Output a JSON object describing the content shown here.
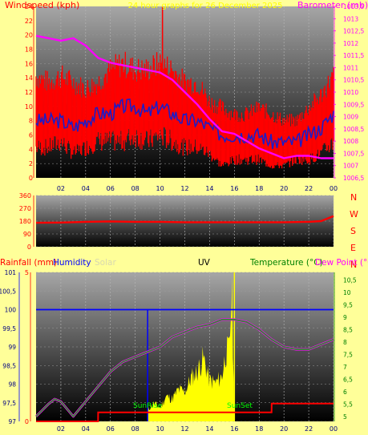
{
  "colors": {
    "page_bg": "#ffff99",
    "wind_speed": "#ff0000",
    "wind_gust": "#ff0000",
    "wind_avg": "#1c1cc8",
    "barometer": "#ff00ff",
    "direction": "#ff0000",
    "humidity": "#0000ff",
    "temperature": "#2e8b2e",
    "dew_point": "#ff00ff",
    "rainfall": "#ff0000",
    "solar": "#ffff00",
    "labels_red": "#ff0000",
    "labels_magenta": "#ff00ff"
  },
  "top": {
    "left_title": "Windspeed (kph)",
    "center_title": "24 hour graphs for 26 December 2025",
    "right_title": "Barometer (mb)",
    "left_ticks": [
      "0",
      "2",
      "4",
      "6",
      "8",
      "10",
      "12",
      "14",
      "16",
      "18",
      "20",
      "22",
      "24"
    ],
    "right_ticks": [
      "1006,5",
      "1007",
      "1007,5",
      "1008",
      "1008,5",
      "1009",
      "1009,5",
      "1010",
      "1010,5",
      "1011",
      "1011,5",
      "1012",
      "1012,5",
      "1013",
      "1013,5"
    ]
  },
  "middle": {
    "left_ticks": [
      "0",
      "90",
      "180",
      "270",
      "360"
    ],
    "compass": [
      "N",
      "W",
      "S",
      "E",
      "N"
    ]
  },
  "bottom": {
    "rain_label": "Rainfall (mm)",
    "humidity_label": "Humidity",
    "solar_label": "Solar",
    "uv_label": "UV",
    "temp_label": "Temperature (°C)",
    "dew_label": "Dew Point (°C",
    "left_ticks": [
      "97",
      "97,5",
      "98",
      "98,5",
      "99",
      "99,5",
      "100",
      "100,5",
      "101"
    ],
    "right_ticks": [
      "5",
      "5,5",
      "6",
      "6,5",
      "7",
      "7,5",
      "8",
      "8,5",
      "9",
      "9,5",
      "10",
      "10,5"
    ],
    "rain_axis_ticks": [
      "0",
      "5"
    ],
    "sunrise": "SunRise",
    "sunset": "SunSet"
  },
  "x_ticks": [
    "02",
    "04",
    "06",
    "08",
    "10",
    "12",
    "14",
    "16",
    "18",
    "20",
    "22",
    "00"
  ],
  "chart_data": [
    {
      "type": "line",
      "title": "24 hour graphs for 26 December 2025",
      "ylabel": "Windspeed (kph)",
      "y2label": "Barometer (mb)",
      "ylim": [
        0,
        24
      ],
      "y2lim": [
        1006.5,
        1013.5
      ],
      "x_hours": [
        0,
        1,
        2,
        3,
        4,
        5,
        6,
        7,
        8,
        9,
        10,
        11,
        12,
        13,
        14,
        15,
        16,
        17,
        18,
        19,
        20,
        21,
        22,
        23,
        24
      ],
      "series": [
        {
          "name": "Barometer (mb)",
          "axis": "right",
          "values": [
            1012.3,
            1012.2,
            1012.1,
            1012.2,
            1011.9,
            1011.4,
            1011.2,
            1011.1,
            1011.0,
            1010.9,
            1010.8,
            1010.5,
            1010.0,
            1009.5,
            1008.9,
            1008.4,
            1008.3,
            1008.0,
            1007.7,
            1007.5,
            1007.3,
            1007.4,
            1007.4,
            1007.3,
            1007.3
          ]
        }
      ],
      "wind_envelope": {
        "gust_max": [
          16,
          15,
          16,
          15,
          14,
          15,
          17,
          18,
          17,
          17,
          18,
          17,
          15,
          15,
          12,
          11,
          10,
          10,
          11,
          10,
          9,
          9,
          11,
          13,
          16
        ],
        "speed_min": [
          5,
          5,
          6,
          4,
          5,
          6,
          6,
          6,
          7,
          6,
          7,
          6,
          5,
          5,
          4,
          2,
          3,
          3,
          3,
          2,
          2,
          3,
          3,
          4,
          6
        ],
        "peak_gust": 24
      },
      "wind_avg": [
        8,
        8,
        8,
        7,
        8,
        9,
        9,
        10,
        10,
        9,
        10,
        9,
        8,
        8,
        7,
        6,
        6,
        6,
        6,
        5,
        5,
        5,
        6,
        7,
        9
      ]
    },
    {
      "type": "line",
      "ylim": [
        0,
        360
      ],
      "x_hours": [
        0,
        2,
        4,
        6,
        8,
        10,
        12,
        14,
        16,
        18,
        20,
        22,
        23,
        24
      ],
      "series": [
        {
          "name": "direction",
          "values": [
            168,
            170,
            175,
            178,
            175,
            175,
            172,
            172,
            172,
            172,
            172,
            175,
            180,
            215
          ]
        }
      ]
    },
    {
      "type": "line",
      "ylabel": "Humidity",
      "y2label": "Temperature (°C)",
      "ylim": [
        97,
        101
      ],
      "y2lim": [
        4.8,
        10.8
      ],
      "x_hours": [
        0,
        1,
        1.5,
        2,
        3,
        4,
        5,
        6,
        7,
        8,
        9,
        10,
        11,
        12,
        13,
        14,
        15,
        16,
        17,
        18,
        19,
        20,
        21,
        22,
        23,
        24
      ],
      "series": [
        {
          "name": "Temperature (°C)",
          "axis": "right",
          "values": [
            5.0,
            5.5,
            5.7,
            5.6,
            5.0,
            5.6,
            6.2,
            6.8,
            7.2,
            7.4,
            7.6,
            7.8,
            8.2,
            8.4,
            8.6,
            8.7,
            8.9,
            8.9,
            8.8,
            8.5,
            8.1,
            7.8,
            7.7,
            7.7,
            7.9,
            8.1
          ]
        },
        {
          "name": "Humidity",
          "values": [
            100,
            100,
            100,
            100,
            100,
            100,
            100,
            100,
            100,
            100,
            100,
            100,
            100,
            100,
            100,
            100,
            100,
            100,
            100,
            100,
            100,
            100,
            100,
            100,
            100,
            100
          ]
        }
      ],
      "rainfall": {
        "ylim": [
          0,
          5
        ],
        "x_hours": [
          0,
          5,
          5.01,
          19,
          19.01,
          24
        ],
        "values": [
          0,
          0,
          0.3,
          0.3,
          0.6,
          0.6
        ]
      },
      "solar": {
        "x_hours": [
          9,
          9.5,
          10,
          10.5,
          11,
          11.5,
          12,
          12.5,
          13,
          13.5,
          14,
          14.5,
          15,
          15.3,
          15.6,
          15.8,
          16
        ],
        "values": [
          0.5,
          0.8,
          0.6,
          1.1,
          1.0,
          1.4,
          1.3,
          1.9,
          2.2,
          2.8,
          1.8,
          1.7,
          2.0,
          3.0,
          3.2,
          6.0,
          0
        ]
      }
    }
  ]
}
